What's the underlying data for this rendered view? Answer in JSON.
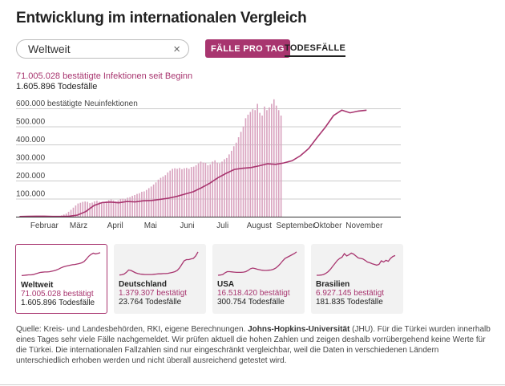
{
  "page": {
    "title": "Entwicklung im internationalen Vergleich",
    "search_value": "Weltweit",
    "clear_icon": "×",
    "tab_cases": "FÄLLE PRO TAG",
    "tab_deaths": "TODESFÄLLE",
    "summary_cases": "71.005.028 bestätigte Infektionen seit Beginn",
    "summary_deaths": "1.605.896 Todesfälle",
    "source_prefix": "Quelle: Kreis- und Landesbehörden, RKI, eigene Berechnungen. ",
    "source_bold": "Johns-Hopkins-Universität",
    "source_suffix": " (JHU). Für die Türkei wurden innerhalb eines Tages sehr viele Fälle nachgemeldet. Wir prüfen aktuell die hohen Zahlen und zeigen deshalb vorrübergehend keine Werte für die Türkei. Die internationalen Fallzahlen sind nur eingeschränkt vergleichbar, weil die Daten in verschiedenen Ländern unterschiedlich erhoben werden und nicht überall ausreichend getestet wird."
  },
  "colors": {
    "accent": "#a8356f",
    "bar": "#d9a3bf",
    "grid": "#cccccc",
    "card_bg": "#f2f2f2"
  },
  "cards": [
    {
      "name": "Weltweit",
      "cases": "71.005.028 bestätigt",
      "deaths": "1.605.896 Todesfälle",
      "selected": true,
      "trend": [
        0.02,
        0.03,
        0.04,
        0.05,
        0.05,
        0.06,
        0.09,
        0.12,
        0.15,
        0.16,
        0.17,
        0.17,
        0.18,
        0.2,
        0.22,
        0.25,
        0.29,
        0.34,
        0.38,
        0.41,
        0.43,
        0.45,
        0.47,
        0.48,
        0.5,
        0.52,
        0.55,
        0.6,
        0.7,
        0.82,
        0.9,
        0.95,
        0.92,
        0.94,
        0.97
      ]
    },
    {
      "name": "Deutschland",
      "cases": "1.379.307 bestätigt",
      "deaths": "23.764 Todesfälle",
      "selected": false,
      "trend": [
        0.01,
        0.02,
        0.05,
        0.12,
        0.22,
        0.2,
        0.15,
        0.1,
        0.07,
        0.05,
        0.04,
        0.03,
        0.03,
        0.03,
        0.03,
        0.04,
        0.05,
        0.06,
        0.06,
        0.07,
        0.07,
        0.08,
        0.1,
        0.12,
        0.15,
        0.2,
        0.3,
        0.45,
        0.6,
        0.65,
        0.65,
        0.68,
        0.7,
        0.8,
        0.97
      ]
    },
    {
      "name": "USA",
      "cases": "16.518.420 bestätigt",
      "deaths": "300.754 Todesfälle",
      "selected": false,
      "trend": [
        0.0,
        0.01,
        0.03,
        0.1,
        0.15,
        0.15,
        0.14,
        0.13,
        0.12,
        0.12,
        0.12,
        0.13,
        0.15,
        0.2,
        0.27,
        0.3,
        0.28,
        0.25,
        0.23,
        0.21,
        0.2,
        0.2,
        0.21,
        0.22,
        0.25,
        0.3,
        0.38,
        0.48,
        0.6,
        0.7,
        0.75,
        0.8,
        0.85,
        0.9,
        0.97
      ]
    },
    {
      "name": "Brasilien",
      "cases": "6.927.145 bestätigt",
      "deaths": "181.835 Todesfälle",
      "selected": false,
      "trend": [
        0.0,
        0.0,
        0.01,
        0.03,
        0.08,
        0.15,
        0.25,
        0.38,
        0.5,
        0.62,
        0.7,
        0.75,
        0.9,
        0.8,
        0.85,
        0.92,
        0.88,
        0.8,
        0.72,
        0.7,
        0.68,
        0.62,
        0.55,
        0.52,
        0.48,
        0.45,
        0.42,
        0.45,
        0.6,
        0.55,
        0.62,
        0.58,
        0.7,
        0.78,
        0.82
      ]
    }
  ],
  "chart_data": {
    "type": "bar",
    "title": "",
    "ylabel": "600.000 bestätigte Neuinfektionen",
    "xlabel": "",
    "ylim": [
      0,
      600000
    ],
    "yticks": [
      100000,
      200000,
      300000,
      400000,
      500000,
      600000
    ],
    "ytick_labels": [
      "100.000",
      "200.000",
      "300.000",
      "400.000",
      "500.000",
      "600.000 bestätigte Neuinfektionen"
    ],
    "x_start": "2020-01-22",
    "x_end": "2020-12-13",
    "month_labels": [
      {
        "label": "Februar",
        "date": "2020-02-15"
      },
      {
        "label": "März",
        "date": "2020-03-15"
      },
      {
        "label": "April",
        "date": "2020-04-15"
      },
      {
        "label": "Mai",
        "date": "2020-05-15"
      },
      {
        "label": "Juni",
        "date": "2020-06-15"
      },
      {
        "label": "Juli",
        "date": "2020-07-15"
      },
      {
        "label": "August",
        "date": "2020-08-15"
      },
      {
        "label": "September",
        "date": "2020-09-15"
      },
      {
        "label": "Oktober",
        "date": "2020-10-12"
      },
      {
        "label": "November",
        "date": "2020-11-12"
      }
    ],
    "series": [
      {
        "type": "bar",
        "interval_days": 2,
        "values": [
          600,
          1000,
          2000,
          3000,
          3300,
          2800,
          3500,
          1900,
          2800,
          2300,
          900,
          1500,
          1000,
          1200,
          1000,
          1500,
          2000,
          3000,
          4500,
          7000,
          12000,
          17000,
          27000,
          38000,
          50000,
          62000,
          73000,
          77000,
          82000,
          84000,
          82000,
          75000,
          78000,
          85000,
          88000,
          82000,
          80000,
          78000,
          85000,
          92000,
          95000,
          90000,
          85000,
          90000,
          98000,
          100000,
          97000,
          105000,
          108000,
          115000,
          120000,
          126000,
          130000,
          138000,
          140000,
          148000,
          158000,
          167000,
          178000,
          190000,
          205000,
          215000,
          222000,
          230000,
          245000,
          255000,
          265000,
          268000,
          265000,
          270000,
          263000,
          268000,
          270000,
          265000,
          275000,
          277000,
          285000,
          295000,
          305000,
          300000,
          298000,
          285000,
          290000,
          305000,
          312000,
          300000,
          295000,
          305000,
          318000,
          325000,
          345000,
          365000,
          390000,
          410000,
          440000,
          470000,
          500000,
          545000,
          565000,
          580000,
          595000,
          590000,
          625000,
          575000,
          560000,
          610000,
          590000,
          605000,
          625000,
          650000,
          615000,
          590000,
          560000
        ]
      },
      {
        "type": "line",
        "label": "7-day average",
        "interval_days": 7,
        "values": [
          700,
          2300,
          2600,
          2500,
          1400,
          1300,
          2500,
          9000,
          28000,
          62000,
          78000,
          81000,
          77000,
          84000,
          82000,
          88000,
          90000,
          96000,
          102000,
          112000,
          125000,
          138000,
          160000,
          185000,
          215000,
          240000,
          262000,
          268000,
          272000,
          282000,
          293000,
          290000,
          298000,
          310000,
          338000,
          378000,
          438000,
          495000,
          560000,
          590000,
          575000,
          585000,
          590000
        ]
      }
    ]
  }
}
